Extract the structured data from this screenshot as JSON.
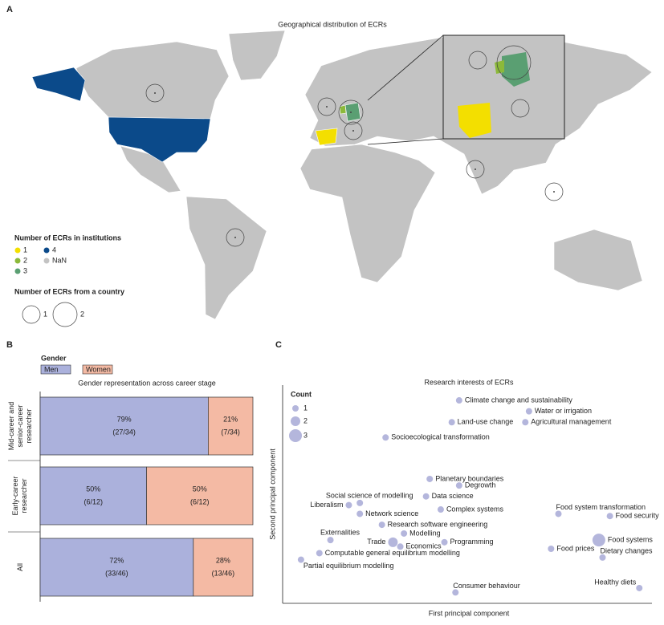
{
  "panel_labels": [
    "A",
    "B",
    "C"
  ],
  "chart_data": [
    {
      "type": "map",
      "title": "Geographical distribution of ECRs",
      "legend_title": "Number of ECRs in institutions",
      "categories": [
        "1",
        "2",
        "3",
        "4",
        "NaN"
      ],
      "colors": [
        "#f3df00",
        "#8cb93a",
        "#5a9f72",
        "#0b4a8a",
        "#c3c3c3"
      ],
      "size_legend_title": "Number of ECRs from a country",
      "size_legend": [
        1,
        2
      ],
      "country_counts": [
        1,
        1,
        2,
        1,
        1,
        1,
        1
      ]
    },
    {
      "type": "stacked_hbar",
      "title": "Gender representation across career stage",
      "legend_title": "Gender",
      "categories": [
        "Mid-career and senior-career researcher",
        "Early-career researcher",
        "All"
      ],
      "xlim": [
        0,
        100
      ],
      "series": [
        {
          "name": "Men",
          "color": "#abb1dc",
          "values": [
            79,
            50,
            72
          ],
          "value_labels": [
            "79%",
            "50%",
            "72%"
          ],
          "count_labels": [
            "(27/34)",
            "(6/12)",
            "(33/46)"
          ]
        },
        {
          "name": "Women",
          "color": "#f4baa4",
          "values": [
            21,
            50,
            28
          ],
          "value_labels": [
            "21%",
            "50%",
            "28%"
          ],
          "count_labels": [
            "(7/34)",
            "(6/12)",
            "(13/46)"
          ]
        }
      ]
    },
    {
      "type": "scatter",
      "title": "Research interests of ECRs",
      "xlabel": "First principal component",
      "ylabel": "Second principal component",
      "legend_title": "Count",
      "size_legend": [
        1,
        2,
        3
      ],
      "color": "#b4b6dc",
      "xlim": [
        0,
        100
      ],
      "ylim": [
        0,
        100
      ],
      "labels": [
        "Climate change and sustainability",
        "Water or irrigation",
        "Land-use change",
        "Agricultural management",
        "Socioecological transformation",
        "Planetary boundaries",
        "Degrowth",
        "Data science",
        "Social science of modelling",
        "Liberalism",
        "Complex systems",
        "Network science",
        "Research software engineering",
        "Externalities",
        "Modelling",
        "Trade",
        "Economics",
        "Programming",
        "Computable general equilibrium modelling",
        "Partial equilibrium modelling",
        "Consumer behaviour",
        "Food system transformation",
        "Food security",
        "Food systems",
        "Food prices",
        "Dietary changes",
        "Healthy diets"
      ],
      "x": [
        48,
        67,
        46,
        66,
        28,
        40,
        48,
        39,
        21,
        18,
        43,
        21,
        27,
        13,
        33,
        30,
        32,
        44,
        10,
        5,
        47,
        75,
        89,
        86,
        73,
        87,
        97
      ],
      "y": [
        93,
        88,
        83,
        83,
        76,
        57,
        54,
        49,
        46,
        45,
        43,
        41,
        36,
        29,
        32,
        28,
        26,
        28,
        23,
        20,
        5,
        41,
        40,
        29,
        25,
        21,
        7
      ],
      "sizes": [
        1,
        1,
        1,
        1,
        1,
        1,
        1,
        1,
        1,
        1,
        1,
        1,
        1,
        1,
        1,
        2,
        1,
        1,
        1,
        1,
        1,
        1,
        1,
        3,
        1,
        1,
        1
      ]
    }
  ]
}
